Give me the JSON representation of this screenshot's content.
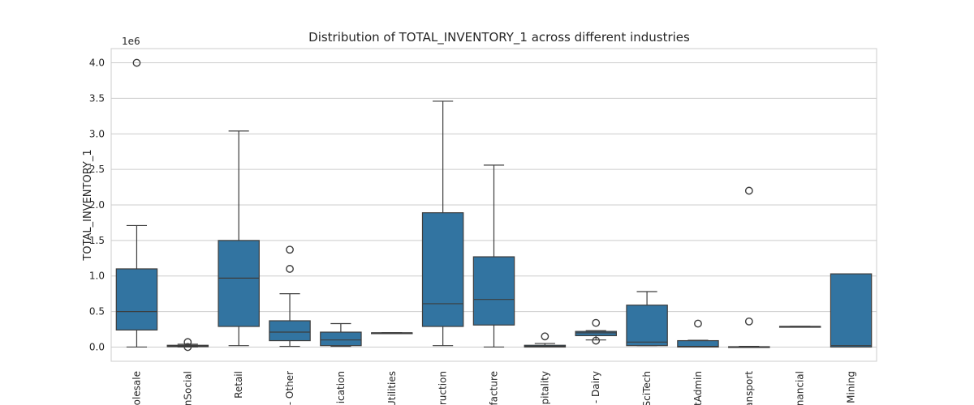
{
  "chart_data": {
    "type": "box",
    "title": "Distribution of TOTAL_INVENTORY_1 across different industries",
    "xlabel": "",
    "ylabel": "TOTAL_INVENTORY_1",
    "offset_label": "1e6",
    "ylim": [
      -200000,
      4200000
    ],
    "yticks": [
      0,
      500000,
      1000000,
      1500000,
      2000000,
      2500000,
      3000000,
      3500000,
      4000000
    ],
    "ytick_labels": [
      "0.0",
      "0.5",
      "1.0",
      "1.5",
      "2.0",
      "2.5",
      "3.0",
      "3.5",
      "4.0"
    ],
    "grid": true,
    "box_color": "#3274a1",
    "edge_color": "#3d3d3d",
    "categories": [
      "olesale",
      "nSocial",
      "Retail",
      "- Other",
      "ication",
      "Utilities",
      "truction",
      "facture",
      "spitality",
      "- Dairy",
      "SciTech",
      "tAdmin",
      "ansport",
      "nancial",
      "Mining"
    ],
    "boxes": [
      {
        "whislo": 0,
        "q1": 240000,
        "med": 500000,
        "q3": 1100000,
        "whishi": 1710000,
        "fliers": [
          4000000
        ]
      },
      {
        "whislo": 0,
        "q1": 5000,
        "med": 15000,
        "q3": 25000,
        "whishi": 40000,
        "fliers": [
          70000,
          0
        ]
      },
      {
        "whislo": 20000,
        "q1": 290000,
        "med": 970000,
        "q3": 1500000,
        "whishi": 3040000,
        "fliers": []
      },
      {
        "whislo": 10000,
        "q1": 90000,
        "med": 210000,
        "q3": 370000,
        "whishi": 750000,
        "fliers": [
          1370000,
          1100000
        ]
      },
      {
        "whislo": 10000,
        "q1": 20000,
        "med": 100000,
        "q3": 210000,
        "whishi": 330000,
        "fliers": []
      },
      {
        "whislo": 200000,
        "q1": 200000,
        "med": 200000,
        "q3": 200000,
        "whishi": 200000,
        "fliers": []
      },
      {
        "whislo": 20000,
        "q1": 290000,
        "med": 610000,
        "q3": 1890000,
        "whishi": 3460000,
        "fliers": []
      },
      {
        "whislo": 0,
        "q1": 310000,
        "med": 670000,
        "q3": 1270000,
        "whishi": 2560000,
        "fliers": []
      },
      {
        "whislo": 0,
        "q1": 0,
        "med": 10000,
        "q3": 25000,
        "whishi": 50000,
        "fliers": [
          150000
        ]
      },
      {
        "whislo": 100000,
        "q1": 160000,
        "med": 200000,
        "q3": 220000,
        "whishi": 230000,
        "fliers": [
          340000,
          90000
        ]
      },
      {
        "whislo": 20000,
        "q1": 20000,
        "med": 70000,
        "q3": 590000,
        "whishi": 780000,
        "fliers": []
      },
      {
        "whislo": 0,
        "q1": 0,
        "med": 10000,
        "q3": 90000,
        "whishi": 95000,
        "fliers": [
          330000
        ]
      },
      {
        "whislo": 0,
        "q1": 0,
        "med": 2000,
        "q3": 5000,
        "whishi": 10000,
        "fliers": [
          2200000,
          360000
        ]
      },
      {
        "whislo": 290000,
        "q1": 290000,
        "med": 290000,
        "q3": 290000,
        "whishi": 290000,
        "fliers": []
      },
      {
        "whislo": 0,
        "q1": 0,
        "med": 20000,
        "q3": 1030000,
        "whishi": 1030000,
        "fliers": []
      }
    ]
  }
}
